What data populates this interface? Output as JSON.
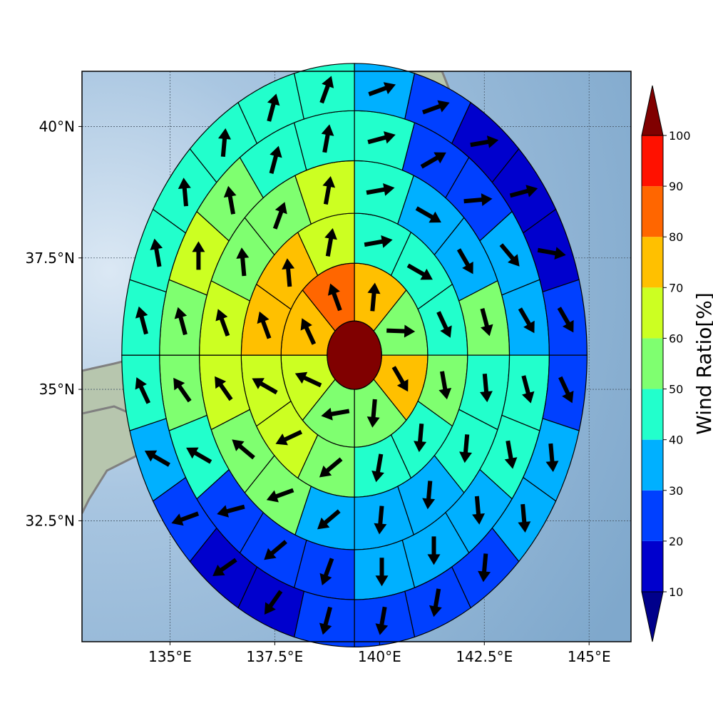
{
  "chart_data": {
    "type": "heatmap",
    "subtype": "polar sector map with wind vectors",
    "title": "",
    "x_axis": {
      "range": [
        132.9,
        146.0
      ],
      "ticks": [
        135,
        137.5,
        140,
        142.5,
        145
      ],
      "tick_labels": [
        "135°E",
        "137.5°E",
        "140°E",
        "142.5°E",
        "145°E"
      ]
    },
    "y_axis": {
      "range": [
        30.2,
        41.05
      ],
      "ticks": [
        32.5,
        35,
        37.5,
        40
      ],
      "tick_labels": [
        "32.5°N",
        "35°N",
        "37.5°N",
        "40°N"
      ]
    },
    "grid": true,
    "center": {
      "lon": 139.4,
      "lat": 35.65
    },
    "ring_radii_deg": [
      0.65,
      1.75,
      2.7,
      3.7,
      4.65,
      5.55
    ],
    "sectors_per_ring": [
      8,
      12,
      16,
      20,
      24
    ],
    "colorbar": {
      "label": "Wind Ratio[%]",
      "position": "right",
      "levels": [
        10,
        20,
        30,
        40,
        50,
        60,
        70,
        80,
        90,
        100
      ],
      "tick_labels": [
        "10",
        "20",
        "30",
        "40",
        "50",
        "60",
        "70",
        "80",
        "90",
        "100"
      ],
      "colors": [
        "#0000cd",
        "#0040ff",
        "#00b0ff",
        "#22ffcc",
        "#7fff70",
        "#ccff22",
        "#ffc000",
        "#ff6600",
        "#ff1100"
      ],
      "under_color": "#00008b",
      "over_color": "#800000"
    },
    "center_value": 100,
    "rings": [
      {
        "values": [
          75,
          55,
          75,
          55,
          55,
          65,
          75,
          85
        ],
        "directions_deg": [
          5,
          92,
          150,
          185,
          260,
          295,
          335,
          340
        ]
      },
      {
        "values": [
          45,
          45,
          45,
          55,
          45,
          45,
          55,
          65,
          65,
          75,
          75,
          65
        ],
        "directions_deg": [
          80,
          120,
          155,
          170,
          185,
          190,
          230,
          245,
          300,
          340,
          355,
          10
        ]
      },
      {
        "values": [
          45,
          35,
          35,
          55,
          45,
          45,
          35,
          35,
          35,
          55,
          55,
          65,
          65,
          55,
          55,
          65
        ],
        "directions_deg": [
          80,
          120,
          150,
          165,
          175,
          185,
          185,
          185,
          230,
          250,
          310,
          325,
          340,
          355,
          20,
          10
        ]
      },
      {
        "values": [
          45,
          25,
          25,
          35,
          35,
          45,
          45,
          35,
          35,
          35,
          25,
          25,
          25,
          45,
          55,
          55,
          65,
          55,
          45,
          45
        ],
        "directions_deg": [
          75,
          60,
          85,
          140,
          150,
          165,
          170,
          175,
          180,
          180,
          200,
          230,
          255,
          300,
          325,
          345,
          0,
          350,
          15,
          10
        ]
      },
      {
        "values": [
          35,
          25,
          15,
          15,
          15,
          25,
          25,
          35,
          35,
          25,
          25,
          25,
          25,
          15,
          15,
          25,
          35,
          45,
          45,
          45,
          45,
          45,
          45,
          45
        ],
        "directions_deg": [
          70,
          70,
          80,
          75,
          100,
          150,
          155,
          175,
          175,
          185,
          190,
          190,
          195,
          215,
          235,
          250,
          300,
          335,
          345,
          350,
          355,
          5,
          15,
          20
        ]
      }
    ]
  }
}
